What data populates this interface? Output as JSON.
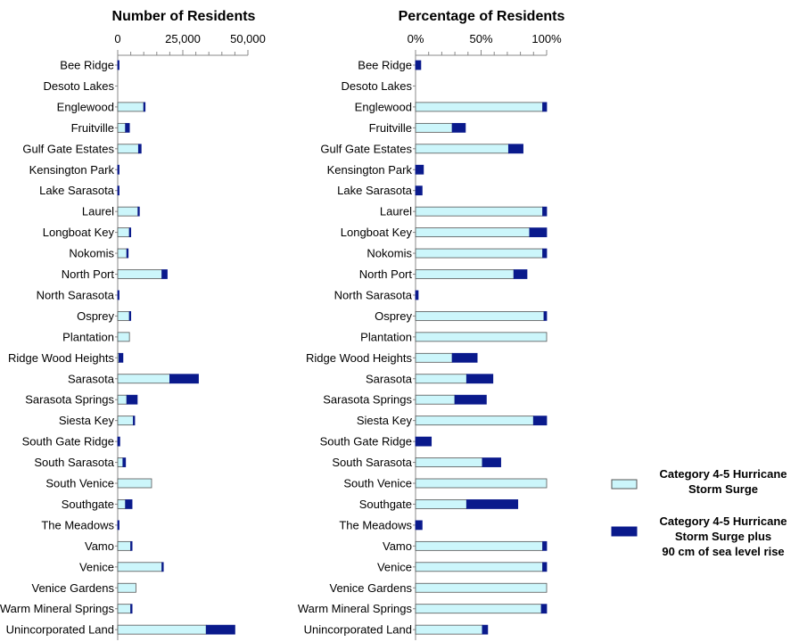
{
  "colors": {
    "surge": "#ccf6fb",
    "surge_plus": "#0a1a8c",
    "bar_stroke": "#555555",
    "axis": "#888888"
  },
  "chart_data": [
    {
      "type": "bar",
      "orientation": "horizontal",
      "stacked": true,
      "title": "Number of Residents",
      "xlim": [
        0,
        50000
      ],
      "ticks": [
        0,
        25000,
        50000
      ],
      "tick_labels": [
        "0",
        "25,000",
        "50,000"
      ],
      "categories": [
        "Bee Ridge",
        "Desoto Lakes",
        "Englewood",
        "Fruitville",
        "Gulf Gate Estates",
        "Kensington Park",
        "Lake Sarasota",
        "Laurel",
        "Longboat Key",
        "Nokomis",
        "North Port",
        "North Sarasota",
        "Osprey",
        "Plantation",
        "Ridge Wood Heights",
        "Sarasota",
        "Sarasota Springs",
        "Siesta Key",
        "South Gate Ridge",
        "South Sarasota",
        "South Venice",
        "Southgate",
        "The Meadows",
        "Vamo",
        "Venice",
        "Venice Gardens",
        "Warm Mineral Springs",
        "Unincorporated Land"
      ],
      "series": [
        {
          "name": "Category 4-5 Hurricane Storm Surge",
          "values": [
            0,
            0,
            10000,
            3000,
            8000,
            0,
            0,
            7800,
            4500,
            3500,
            17000,
            0,
            4500,
            4500,
            500,
            20000,
            3500,
            6000,
            0,
            2000,
            13000,
            3000,
            0,
            5000,
            17000,
            7000,
            5000,
            34000
          ]
        },
        {
          "name": "Category 4-5 Hurricane Storm Surge plus 90 cm of sea level rise",
          "values": [
            200,
            0,
            300,
            1500,
            1000,
            200,
            100,
            200,
            300,
            100,
            2000,
            100,
            100,
            0,
            1500,
            11000,
            4000,
            500,
            800,
            1000,
            0,
            2500,
            200,
            100,
            500,
            0,
            200,
            11000
          ]
        }
      ]
    },
    {
      "type": "bar",
      "orientation": "horizontal",
      "stacked": true,
      "title": "Percentage of Residents",
      "xlim": [
        0,
        100
      ],
      "ticks": [
        0,
        50,
        100
      ],
      "tick_labels": [
        "0%",
        "50%",
        "100%"
      ],
      "categories": [
        "Bee Ridge",
        "Desoto Lakes",
        "Englewood",
        "Fruitville",
        "Gulf Gate Estates",
        "Kensington Park",
        "Lake Sarasota",
        "Laurel",
        "Longboat Key",
        "Nokomis",
        "North Port",
        "North Sarasota",
        "Osprey",
        "Plantation",
        "Ridge Wood Heights",
        "Sarasota",
        "Sarasota Springs",
        "Siesta Key",
        "South Gate Ridge",
        "South Sarasota",
        "South Venice",
        "Southgate",
        "The Meadows",
        "Vamo",
        "Venice",
        "Venice Gardens",
        "Warm Mineral Springs",
        "Unincorporated Land"
      ],
      "series": [
        {
          "name": "Category 4-5 Hurricane Storm Surge",
          "values": [
            0,
            0,
            97,
            28,
            71,
            0,
            0,
            97,
            87,
            97,
            75,
            0,
            98,
            100,
            28,
            39,
            30,
            90,
            0,
            51,
            100,
            39,
            0,
            97,
            97,
            100,
            96,
            51
          ]
        },
        {
          "name": "Category 4-5 Hurricane Storm Surge plus 90 cm of sea level rise",
          "values": [
            4,
            0,
            3,
            10,
            11,
            6,
            5,
            3,
            13,
            3,
            10,
            2,
            2,
            0,
            19,
            20,
            24,
            10,
            12,
            14,
            0,
            39,
            5,
            3,
            3,
            0,
            4,
            4
          ]
        }
      ]
    }
  ],
  "legend": {
    "placement": "right",
    "items": [
      {
        "lines": [
          "Category 4-5 Hurricane",
          "Storm Surge"
        ]
      },
      {
        "lines": [
          "Category 4-5 Hurricane",
          "Storm Surge plus",
          "90 cm of sea level rise"
        ]
      }
    ]
  }
}
